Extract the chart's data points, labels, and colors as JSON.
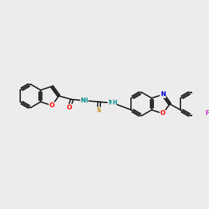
{
  "background_color": "#ececec",
  "bond_color": "#1a1a1a",
  "lw": 1.3,
  "atom_colors": {
    "O": "#ff0000",
    "N": "#0000cd",
    "S": "#b8860b",
    "F": "#cc33cc",
    "NH": "#008b8b"
  },
  "figsize": [
    3.0,
    3.0
  ],
  "dpi": 100,
  "xlim": [
    0.0,
    10.0
  ],
  "ylim": [
    1.5,
    6.5
  ]
}
